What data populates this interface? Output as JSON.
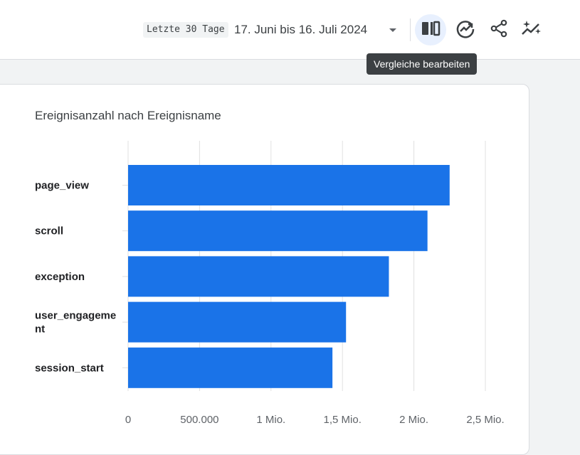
{
  "header": {
    "range_label": "Letzte 30 Tage",
    "date_range": "17. Juni bis 16. Juli 2024",
    "tooltip": "Vergleiche bearbeiten",
    "icons": [
      "chevron-down-icon",
      "compare-icon",
      "insights-icon",
      "share-icon",
      "sparkle-icon"
    ]
  },
  "card": {
    "title": "Ereignisanzahl nach Ereignisname"
  },
  "colors": {
    "bar": "#1a73e8",
    "grid": "#e0e0e0",
    "accent": "#1a73e8"
  },
  "chart_data": {
    "type": "bar",
    "orientation": "horizontal",
    "categories": [
      "page_view",
      "scroll",
      "exception",
      "user_engagement",
      "session_start"
    ],
    "category_labels": [
      [
        "page_view"
      ],
      [
        "scroll"
      ],
      [
        "exception"
      ],
      [
        "user_engageme",
        "nt"
      ],
      [
        "session_start"
      ]
    ],
    "values": [
      2250000,
      2095000,
      1825000,
      1525000,
      1430000
    ],
    "xlim": [
      0,
      2500000
    ],
    "x_ticks": [
      0,
      500000,
      1000000,
      1500000,
      2000000,
      2500000
    ],
    "x_tick_labels": [
      "0",
      "500.000",
      "1 Mio.",
      "1,5 Mio.",
      "2 Mio.",
      "2,5 Mio."
    ],
    "grid": true
  }
}
